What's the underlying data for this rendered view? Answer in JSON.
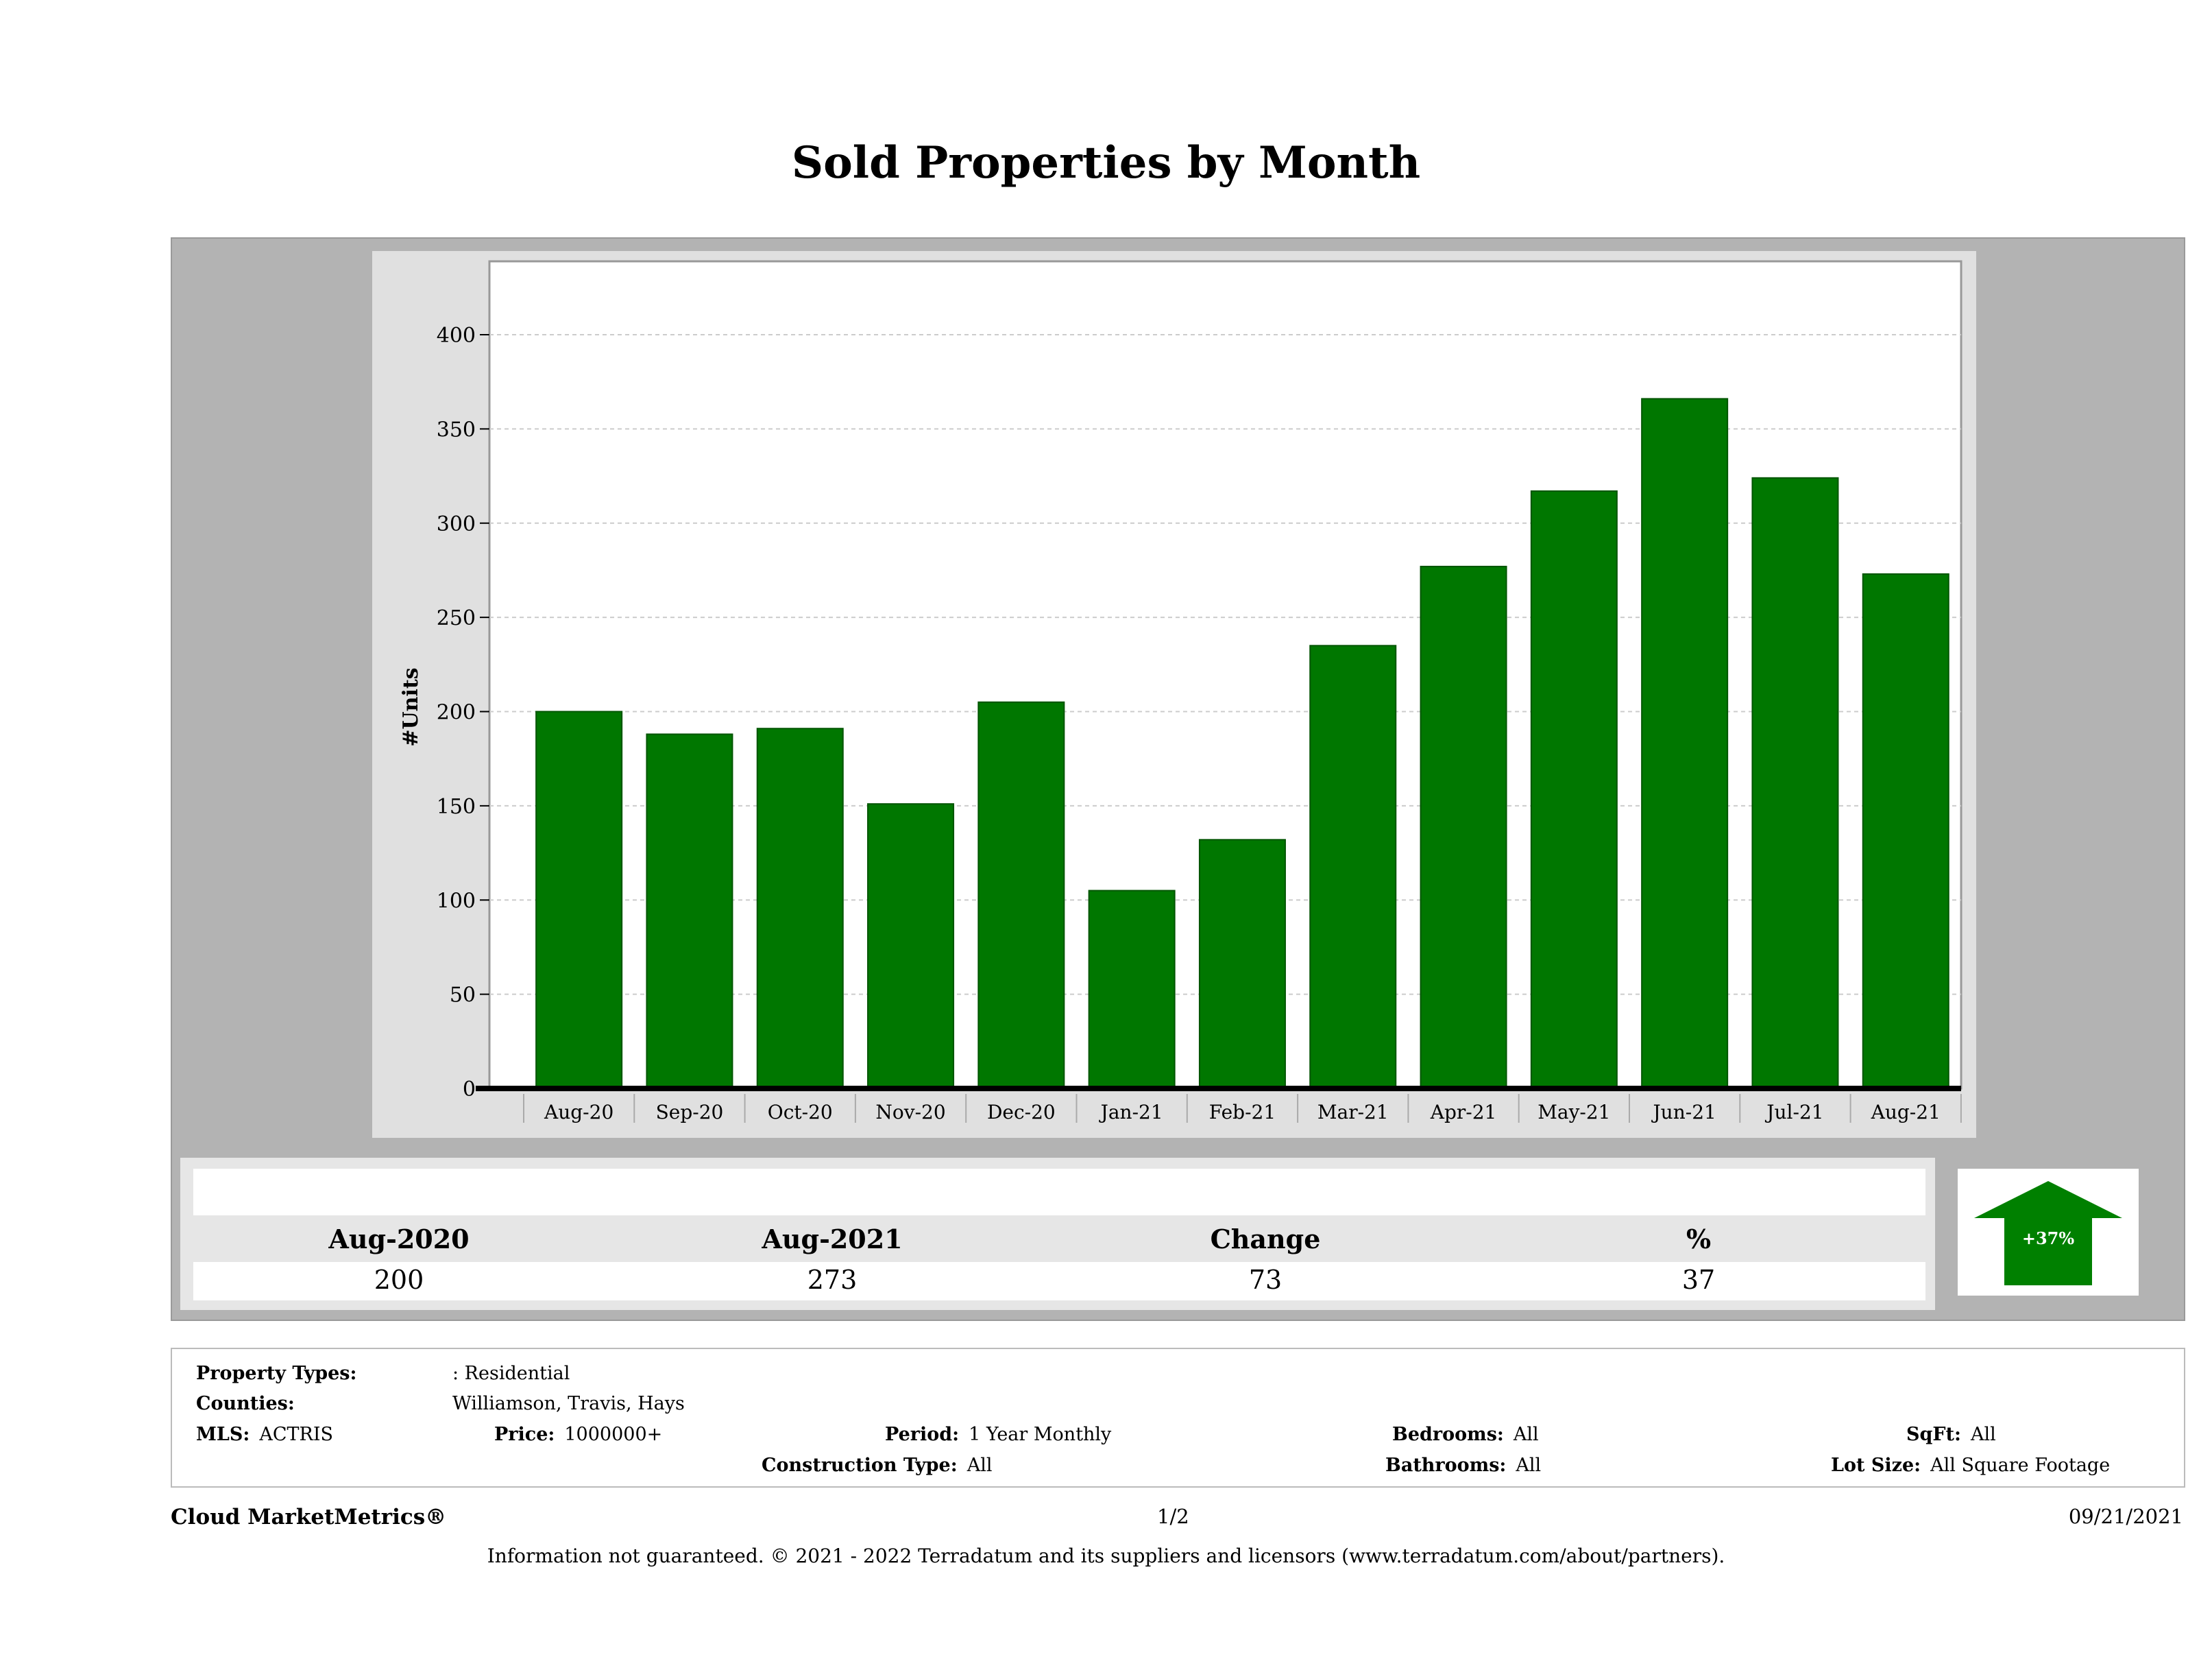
{
  "title": "Sold Properties by Month",
  "colors": {
    "bar": "#007700",
    "panel": "#b3b3b3",
    "chart_bg": "#e0e0e0",
    "arrow": "#008000"
  },
  "chart_data": {
    "type": "bar",
    "title": "Sold Properties by Month",
    "ylabel": "#Units",
    "xlabel": "",
    "categories": [
      "Aug-20",
      "Sep-20",
      "Oct-20",
      "Nov-20",
      "Dec-20",
      "Jan-21",
      "Feb-21",
      "Mar-21",
      "Apr-21",
      "May-21",
      "Jun-21",
      "Jul-21",
      "Aug-21"
    ],
    "values": [
      200,
      188,
      191,
      151,
      205,
      105,
      132,
      235,
      277,
      317,
      366,
      324,
      273
    ],
    "ylim": [
      0,
      440
    ],
    "yticks": [
      0,
      50,
      100,
      150,
      200,
      250,
      300,
      350,
      400
    ],
    "grid": true
  },
  "summary": {
    "headers": [
      "Aug-2020",
      "Aug-2021",
      "Change",
      "%"
    ],
    "values": [
      "200",
      "273",
      "73",
      "37"
    ],
    "badge": "+37%",
    "badge_icon": "up-arrow-icon"
  },
  "info": {
    "property_types_label": "Property Types:",
    "property_types": ": Residential",
    "counties_label": "Counties:",
    "counties": "Williamson, Travis, Hays",
    "mls_label": "MLS:",
    "mls": "ACTRIS",
    "price_label": "Price:",
    "price": "1000000+",
    "period_label": "Period:",
    "period": "1 Year Monthly",
    "construction_label": "Construction Type:",
    "construction": "All",
    "bedrooms_label": "Bedrooms:",
    "bedrooms": "All",
    "bathrooms_label": "Bathrooms:",
    "bathrooms": "All",
    "sqft_label": "SqFt:",
    "sqft": "All",
    "lot_label": "Lot Size:",
    "lot": "All Square Footage"
  },
  "footer": {
    "brand": "Cloud MarketMetrics®",
    "page": "1/2",
    "date": "09/21/2021",
    "disclaimer": "Information not guaranteed. © 2021 - 2022 Terradatum and its suppliers and licensors (www.terradatum.com/about/partners)."
  }
}
